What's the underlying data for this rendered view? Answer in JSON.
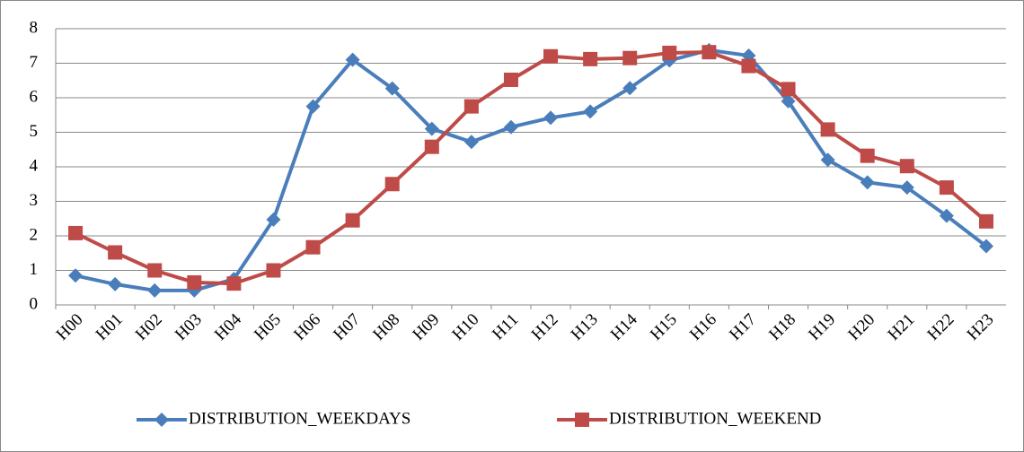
{
  "chart_data": {
    "type": "line",
    "categories": [
      "H00",
      "H01",
      "H02",
      "H03",
      "H04",
      "H05",
      "H06",
      "H07",
      "H08",
      "H09",
      "H10",
      "H11",
      "H12",
      "H13",
      "H14",
      "H15",
      "H16",
      "H17",
      "H18",
      "H19",
      "H20",
      "H21",
      "H22",
      "H23"
    ],
    "series": [
      {
        "name": "DISTRIBUTION_WEEKDAYS",
        "color": "#4a7ebb",
        "marker": "diamond",
        "values": [
          0.85,
          0.6,
          0.42,
          0.42,
          0.75,
          2.47,
          5.75,
          7.1,
          6.27,
          5.1,
          4.72,
          5.15,
          5.42,
          5.6,
          6.28,
          7.08,
          7.38,
          7.22,
          5.9,
          4.2,
          3.55,
          3.4,
          2.58,
          1.7
        ]
      },
      {
        "name": "DISTRIBUTION_WEEKEND",
        "color": "#be4b48",
        "marker": "square",
        "values": [
          2.08,
          1.52,
          1.0,
          0.65,
          0.62,
          1.0,
          1.67,
          2.45,
          3.5,
          4.58,
          5.75,
          6.52,
          7.2,
          7.12,
          7.15,
          7.3,
          7.32,
          6.92,
          6.25,
          5.08,
          4.32,
          4.02,
          3.4,
          2.42
        ]
      }
    ],
    "ylim": [
      0,
      8
    ],
    "yticks": [
      0,
      1,
      2,
      3,
      4,
      5,
      6,
      7,
      8
    ],
    "grid": true,
    "legend": "bottom"
  }
}
